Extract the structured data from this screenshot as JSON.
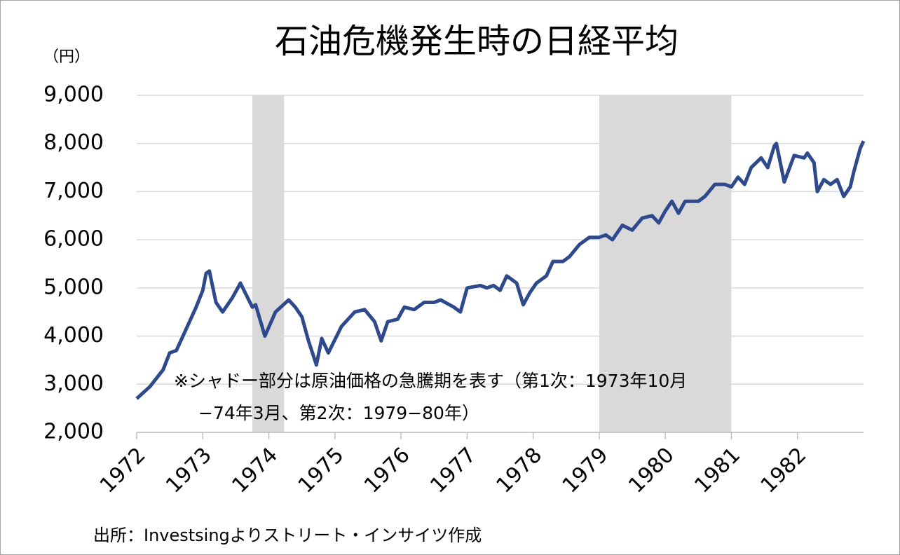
{
  "chart_data": {
    "type": "line",
    "title": "石油危機発生時の日経平均",
    "y_unit_label": "（円）",
    "annotations": [
      "※シャドー部分は原油価格の急騰期を表す（第1次：1973年10月",
      "−74年3月、第2次：1979−80年）"
    ],
    "source": "出所：Investsingよりストリート・インサイツ作成",
    "xlim": [
      1972,
      1983
    ],
    "xticks": [
      1972,
      1973,
      1974,
      1975,
      1976,
      1977,
      1978,
      1979,
      1980,
      1981,
      1982
    ],
    "ylim": [
      2000,
      9000
    ],
    "yticks": [
      {
        "value": 2000,
        "label": "2,000"
      },
      {
        "value": 3000,
        "label": "3,000"
      },
      {
        "value": 4000,
        "label": "4,000"
      },
      {
        "value": 5000,
        "label": "5,000"
      },
      {
        "value": 6000,
        "label": "6,000"
      },
      {
        "value": 7000,
        "label": "7,000"
      },
      {
        "value": 8000,
        "label": "8,000"
      },
      {
        "value": 9000,
        "label": "9,000"
      }
    ],
    "grid": true,
    "shade_color": "#d9d9d9",
    "shaded_regions": [
      [
        1973.75,
        1974.23
      ],
      [
        1979.0,
        1981.0
      ]
    ],
    "x": [
      1972.0,
      1972.2,
      1972.4,
      1972.5,
      1972.6,
      1972.7,
      1972.8,
      1972.9,
      1973.0,
      1973.05,
      1973.1,
      1973.2,
      1973.3,
      1973.45,
      1973.57,
      1973.75,
      1973.8,
      1973.94,
      1974.1,
      1974.3,
      1974.4,
      1974.5,
      1974.6,
      1974.72,
      1974.8,
      1974.9,
      1975.1,
      1975.3,
      1975.45,
      1975.6,
      1975.7,
      1975.8,
      1975.95,
      1976.05,
      1976.2,
      1976.35,
      1976.5,
      1976.6,
      1976.8,
      1976.9,
      1977.0,
      1977.2,
      1977.3,
      1977.4,
      1977.5,
      1977.6,
      1977.75,
      1977.85,
      1977.95,
      1978.05,
      1978.2,
      1978.3,
      1978.45,
      1978.55,
      1978.7,
      1978.85,
      1979.0,
      1979.1,
      1979.2,
      1979.35,
      1979.5,
      1979.65,
      1979.8,
      1979.9,
      1980.0,
      1980.1,
      1980.2,
      1980.3,
      1980.5,
      1980.6,
      1980.75,
      1980.9,
      1981.0,
      1981.1,
      1981.2,
      1981.3,
      1981.45,
      1981.55,
      1981.65,
      1981.68,
      1981.8,
      1981.95,
      1982.1,
      1982.15,
      1982.25,
      1982.3,
      1982.4,
      1982.5,
      1982.6,
      1982.7,
      1982.8,
      1982.85,
      1982.95,
      1983.0
    ],
    "series": [
      {
        "name": "日経平均",
        "color": "#2e4a8c",
        "values": [
          2700,
          2950,
          3300,
          3650,
          3700,
          4000,
          4300,
          4600,
          4950,
          5300,
          5350,
          4700,
          4500,
          4800,
          5100,
          4600,
          4650,
          4000,
          4500,
          4750,
          4600,
          4400,
          3900,
          3400,
          3950,
          3650,
          4200,
          4500,
          4550,
          4300,
          3900,
          4300,
          4350,
          4600,
          4550,
          4700,
          4700,
          4750,
          4600,
          4500,
          5000,
          5050,
          5000,
          5050,
          4950,
          5250,
          5100,
          4650,
          4900,
          5100,
          5250,
          5550,
          5550,
          5650,
          5900,
          6050,
          6050,
          6100,
          6000,
          6300,
          6200,
          6450,
          6500,
          6350,
          6600,
          6800,
          6550,
          6800,
          6800,
          6900,
          7150,
          7150,
          7100,
          7300,
          7150,
          7500,
          7700,
          7500,
          7950,
          8000,
          7200,
          7750,
          7700,
          7800,
          7600,
          7000,
          7250,
          7150,
          7250,
          6900,
          7100,
          7400,
          7900,
          8050
        ]
      }
    ]
  }
}
